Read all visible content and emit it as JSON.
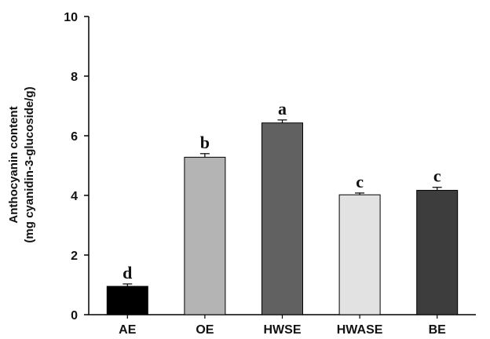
{
  "chart_data": {
    "type": "bar",
    "title": "",
    "xlabel": "",
    "ylabel_line1": "Anthocyanin content",
    "ylabel_line2": "(mg cyanidin-3-glucoside/g)",
    "ylim": [
      0,
      10
    ],
    "yticks": [
      "0",
      "2",
      "4",
      "6",
      "8",
      "10"
    ],
    "categories": [
      "AE",
      "OE",
      "HWSE",
      "HWASE",
      "BE"
    ],
    "values": [
      0.95,
      5.28,
      6.43,
      4.02,
      4.17
    ],
    "errors": [
      0.08,
      0.12,
      0.1,
      0.06,
      0.1
    ],
    "significance": [
      "d",
      "b",
      "a",
      "c",
      "c"
    ],
    "colors": [
      "#000000",
      "#b4b4b4",
      "#616161",
      "#e2e2e2",
      "#3d3d3d"
    ],
    "grid": false
  }
}
